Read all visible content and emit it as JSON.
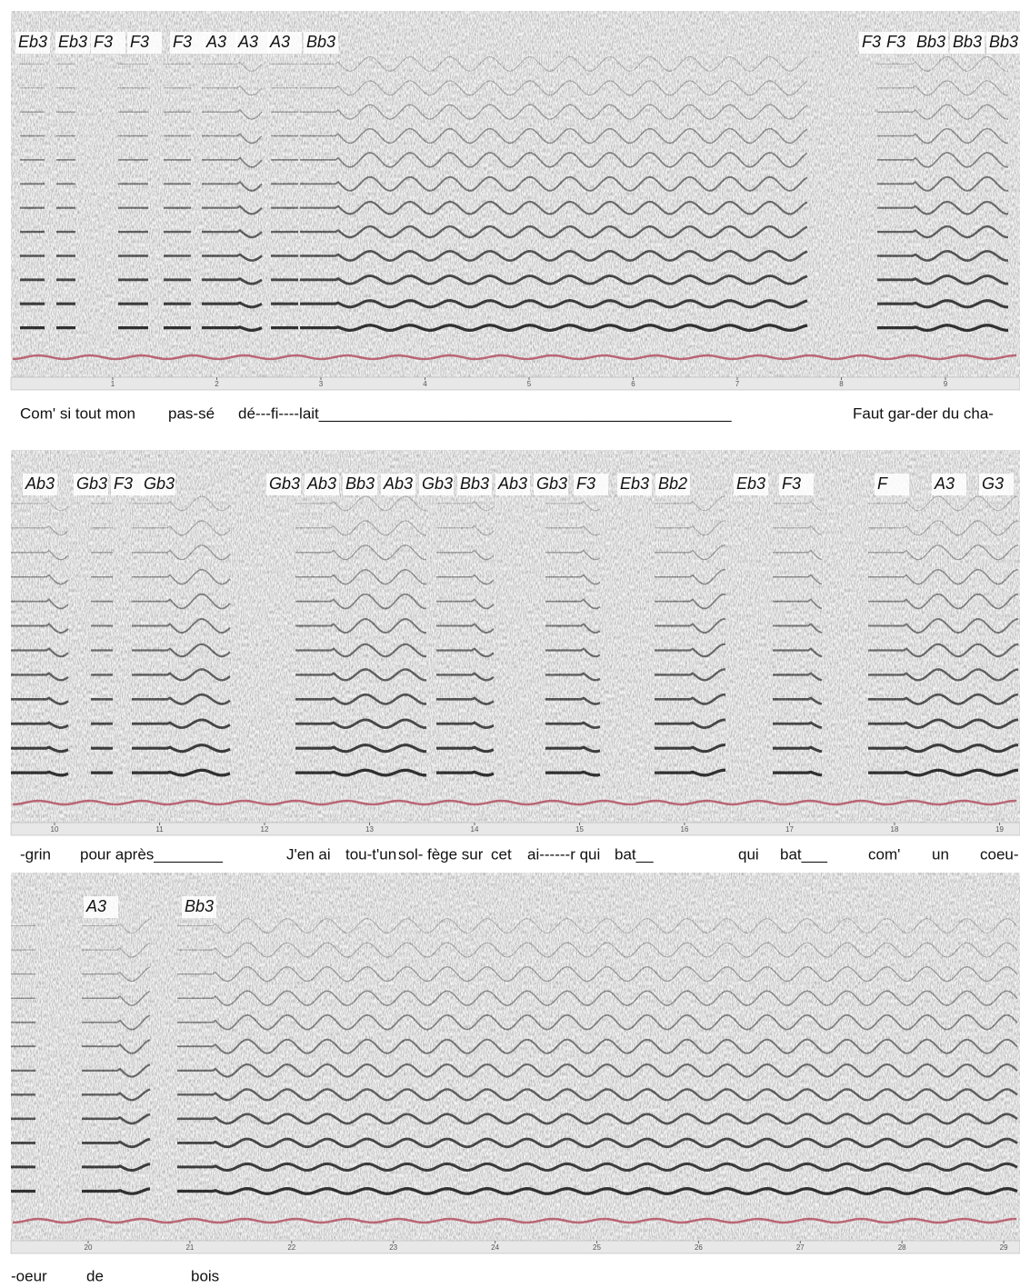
{
  "panels": [
    {
      "notes": [
        "Eb3",
        "Eb3",
        "F3",
        "F3",
        "F3",
        "A3",
        "A3",
        "A3",
        "Bb3",
        "F3",
        "F3",
        "Bb3",
        "Bb3",
        "Bb3"
      ],
      "time_ticks": [
        1,
        2,
        3,
        4,
        5,
        6,
        7,
        8,
        9
      ],
      "lyrics": [
        "Com' si tout mon",
        "pas-sé",
        "dé---fi----lait________________________________________________",
        "Faut gar-der  du cha-"
      ]
    },
    {
      "notes": [
        "Ab3",
        "Gb3",
        "F3",
        "Gb3",
        "Gb3",
        "Ab3",
        "Bb3",
        "Ab3",
        "Gb3",
        "Bb3",
        "Ab3",
        "Gb3",
        "F3",
        "Eb3",
        "Bb2",
        "Eb3",
        "F3",
        "F",
        "A3",
        "G3"
      ],
      "time_ticks": [
        10,
        11,
        12,
        13,
        14,
        15,
        16,
        17,
        18,
        19
      ],
      "lyrics": [
        "-grin",
        "pour après________",
        "J'en ai",
        "tou-t'un",
        "sol-",
        "fège sur",
        "cet",
        "ai------r qui",
        "bat__",
        "qui",
        "bat___",
        "com'",
        "un",
        "coeu-"
      ]
    },
    {
      "notes": [
        "A3",
        "Bb3"
      ],
      "time_ticks": [
        20,
        21,
        22,
        23,
        24,
        25,
        26,
        27,
        28,
        29
      ],
      "lyrics": [
        "-oeur",
        "de",
        "bois"
      ]
    }
  ]
}
